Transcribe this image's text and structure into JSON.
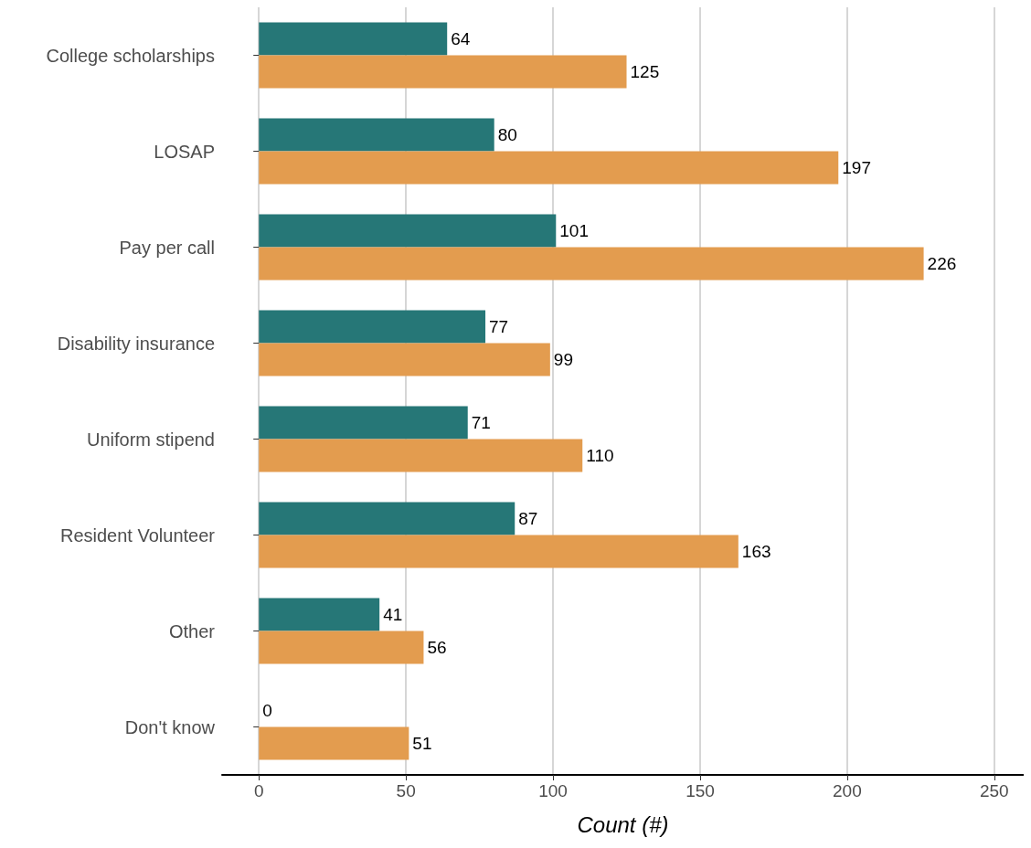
{
  "chart_data": {
    "type": "bar",
    "orientation": "horizontal",
    "xlabel": "Count (#)",
    "categories": [
      "College scholarships",
      "LOSAP",
      "Pay per call",
      "Disability insurance",
      "Uniform stipend",
      "Resident Volunteer",
      "Other",
      "Don't know"
    ],
    "series": [
      {
        "color": "#267777",
        "values": [
          64,
          80,
          101,
          77,
          71,
          87,
          41,
          0
        ]
      },
      {
        "color": "#e39c4f",
        "values": [
          125,
          197,
          226,
          99,
          110,
          163,
          56,
          51
        ]
      }
    ],
    "xlim": [
      -12.5,
      260
    ],
    "xticks": [
      0,
      50,
      100,
      150,
      200,
      250
    ],
    "grid": "x",
    "data_labels": true
  }
}
